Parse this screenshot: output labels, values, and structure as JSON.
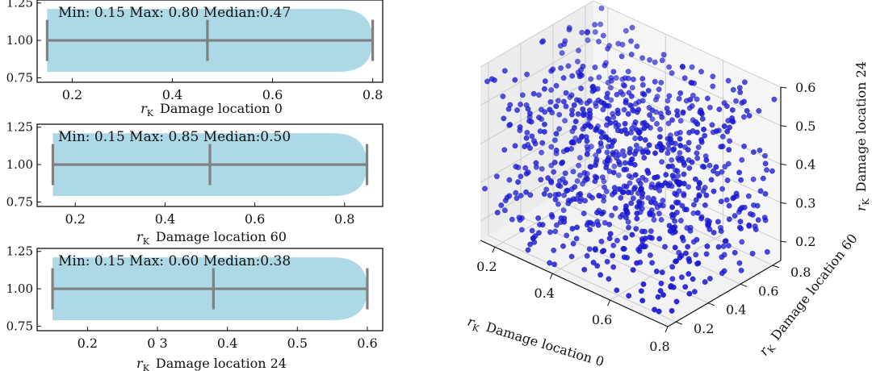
{
  "chart_data": [
    {
      "type": "violin",
      "annotation": "Min: 0.15 Max: 0.80 Median:0.47",
      "xlabel_symbol": "r",
      "xlabel_subscript": "K",
      "xlabel_text": "Damage location 0",
      "xlim": [
        0.13,
        0.82
      ],
      "ylim": [
        0.72,
        1.27
      ],
      "xticks": [
        "0.2",
        "0.4",
        "0.6",
        "0.8"
      ],
      "xtick_values": [
        0.2,
        0.4,
        0.6,
        0.8
      ],
      "yticks": [
        "0.75",
        "1.00",
        "1.25"
      ],
      "ytick_values": [
        0.75,
        1.0,
        1.25
      ],
      "min": 0.15,
      "max": 0.8,
      "median": 0.47,
      "fill_color": "#add8e6",
      "line_color": "#808080"
    },
    {
      "type": "violin",
      "annotation": "Min: 0.15 Max: 0.85 Median:0.50",
      "xlabel_symbol": "r",
      "xlabel_subscript": "K",
      "xlabel_text": "Damage location 60",
      "xlim": [
        0.115,
        0.885
      ],
      "ylim": [
        0.72,
        1.27
      ],
      "xticks": [
        "0.2",
        "0.4",
        "0.6",
        "0.8"
      ],
      "xtick_values": [
        0.2,
        0.4,
        0.6,
        0.8
      ],
      "yticks": [
        "0.75",
        "1.00",
        "1.25"
      ],
      "ytick_values": [
        0.75,
        1.0,
        1.25
      ],
      "min": 0.15,
      "max": 0.85,
      "median": 0.5,
      "fill_color": "#add8e6",
      "line_color": "#808080"
    },
    {
      "type": "violin",
      "annotation": "Min: 0.15 Max: 0.60 Median:0.38",
      "xlabel_symbol": "r",
      "xlabel_subscript": "K",
      "xlabel_text": "Damage location 24",
      "xlim": [
        0.128,
        0.622
      ],
      "ylim": [
        0.72,
        1.27
      ],
      "xticks": [
        "0.2",
        "0 3",
        "0.4",
        "0.5",
        "0.6"
      ],
      "xtick_values": [
        0.2,
        0.3,
        0.4,
        0.5,
        0.6
      ],
      "yticks": [
        "0.75",
        "1.00",
        "1.25"
      ],
      "ytick_values": [
        0.75,
        1.0,
        1.25
      ],
      "min": 0.15,
      "max": 0.6,
      "median": 0.38,
      "fill_color": "#add8e6",
      "line_color": "#808080"
    },
    {
      "type": "scatter3d",
      "xlabel_symbol": "r",
      "xlabel_subscript": "K",
      "xlabel_text": "Damage location 0",
      "ylabel_symbol": "r",
      "ylabel_subscript": "K",
      "ylabel_text": "Damage location 60",
      "zlabel_symbol": "r",
      "zlabel_subscript": "K",
      "zlabel_text": "Damage location 24",
      "x_range": [
        0.15,
        0.8
      ],
      "y_range": [
        0.15,
        0.85
      ],
      "z_range": [
        0.15,
        0.6
      ],
      "xticks": [
        "0.2",
        "0.4",
        "0.6",
        "0.8"
      ],
      "xtick_values": [
        0.2,
        0.4,
        0.6,
        0.8
      ],
      "yticks": [
        "0.2",
        "0.4",
        "0.6",
        "0.8"
      ],
      "ytick_values": [
        0.2,
        0.4,
        0.6,
        0.8
      ],
      "zticks": [
        "0.2",
        "0.3",
        "0.4",
        "0.5",
        "0.6"
      ],
      "ztick_values": [
        0.2,
        0.3,
        0.4,
        0.5,
        0.6
      ],
      "point_count": 900,
      "grid": true,
      "point_color": "#1a1adc"
    }
  ]
}
